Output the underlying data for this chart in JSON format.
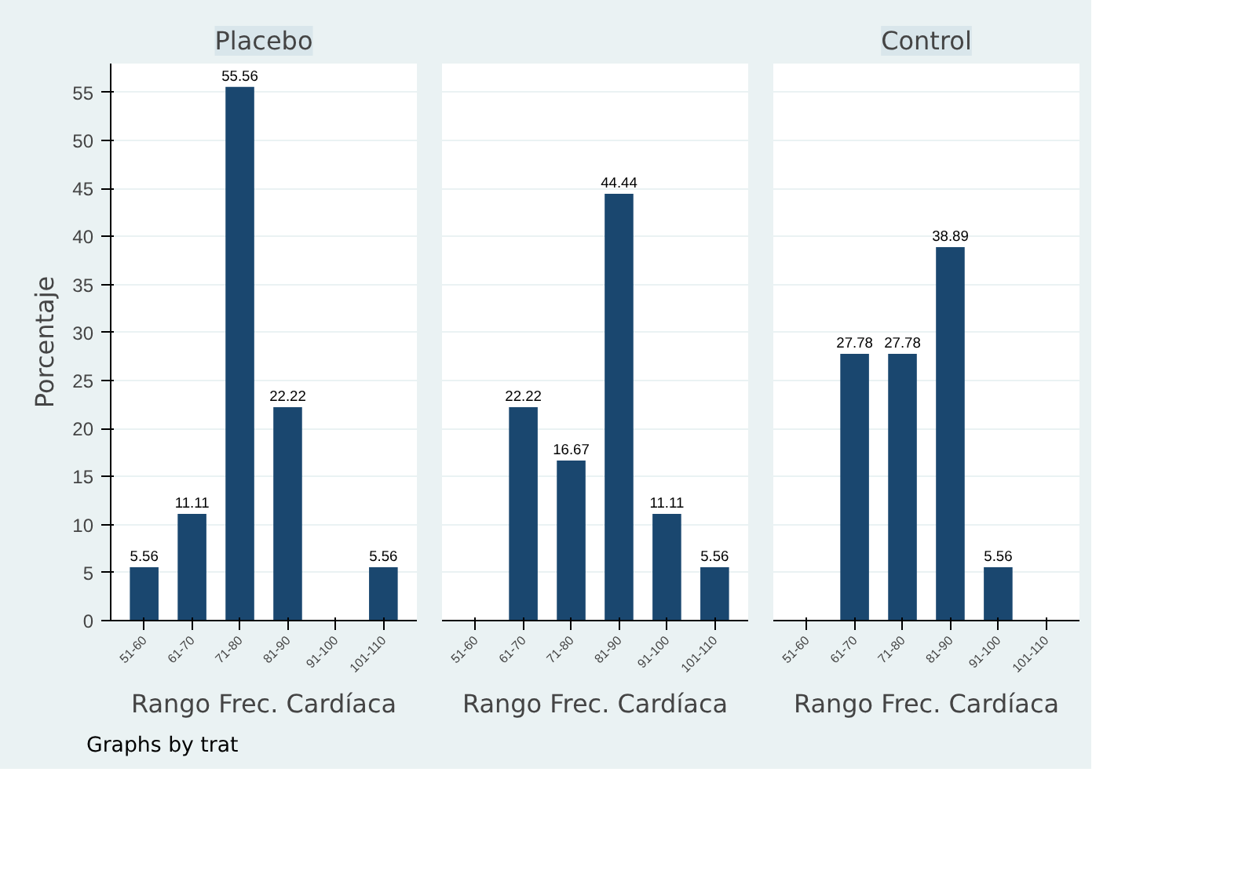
{
  "chart_data": [
    {
      "type": "bar",
      "title": "Placebo",
      "categories": [
        "51-60",
        "61-70",
        "71-80",
        "81-90",
        "91-100",
        "101-110"
      ],
      "values": [
        5.56,
        11.11,
        55.56,
        22.22,
        0,
        5.56
      ],
      "value_labels": [
        "5.56",
        "11.11",
        "55.56",
        "22.22",
        null,
        "5.56"
      ],
      "color": "#1a476f",
      "xlabel": "Rango Frec. Cardíaca",
      "ylabel": "Porcentaje",
      "ylim": [
        0,
        58
      ],
      "yticks": [
        0,
        5,
        10,
        15,
        20,
        25,
        30,
        35,
        40,
        45,
        50,
        55
      ],
      "grid": "y",
      "annotations": [
        "Graphs by trat"
      ]
    },
    {
      "type": "bar",
      "categories": [
        "51-60",
        "61-70",
        "71-80",
        "81-90",
        "91-100",
        "101-110"
      ],
      "values": [
        0,
        22.22,
        16.67,
        44.44,
        11.11,
        5.56
      ],
      "value_labels": [
        null,
        "22.22",
        "16.67",
        "44.44",
        "11.11",
        "5.56"
      ],
      "color": "#1a476f",
      "xlabel": "Rango Frec. Cardíaca",
      "ylim": [
        0,
        58
      ],
      "yticks": [
        0,
        5,
        10,
        15,
        20,
        25,
        30,
        35,
        40,
        45,
        50,
        55
      ],
      "grid": "y",
      "tick_labels": "x"
    },
    {
      "type": "bar",
      "title": "Control",
      "categories": [
        "51-60",
        "61-70",
        "71-80",
        "81-90",
        "91-100",
        "101-110"
      ],
      "values": [
        0,
        27.78,
        27.78,
        38.89,
        5.56,
        0
      ],
      "value_labels": [
        null,
        "27.78",
        "27.78",
        "38.89",
        "5.56",
        null
      ],
      "color": "#1a476f",
      "xlabel": "Rango Frec. Cardíaca",
      "ylim": [
        0,
        58
      ],
      "yticks": [
        0,
        5,
        10,
        15,
        20,
        25,
        30,
        35,
        40,
        45,
        50,
        55
      ],
      "grid": "y",
      "tick_labels": "x"
    }
  ]
}
